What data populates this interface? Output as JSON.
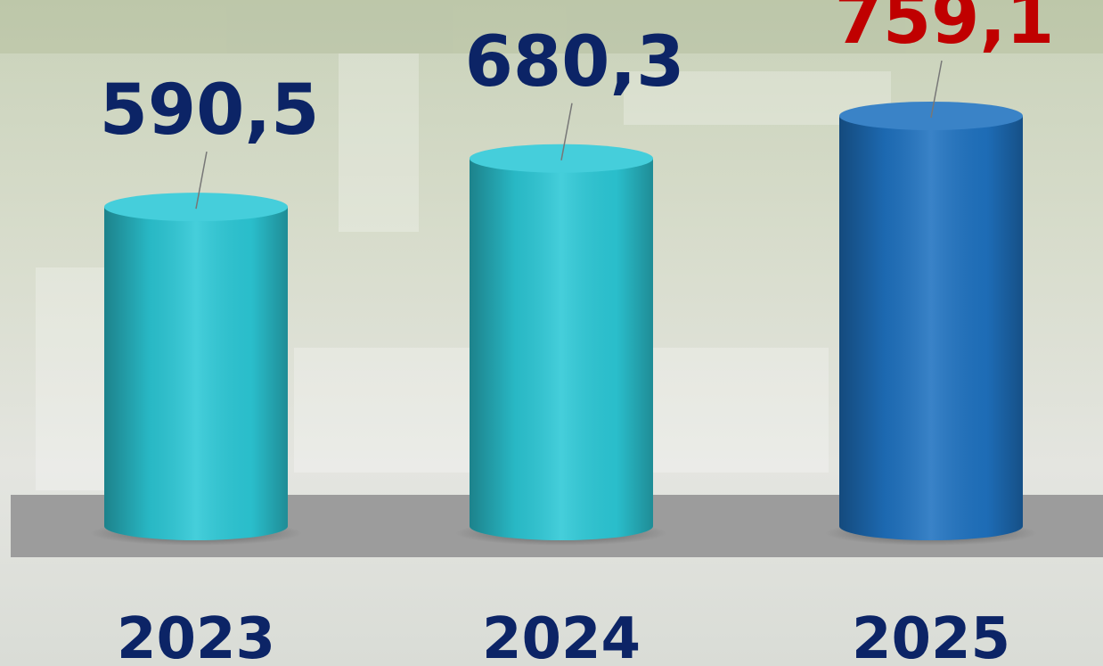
{
  "chart_data": {
    "type": "bar",
    "categories": [
      "2023",
      "2024",
      "2025"
    ],
    "values": [
      590.5,
      680.3,
      759.1
    ],
    "value_labels": [
      "590,5",
      "680,3",
      "759,1"
    ],
    "colors": [
      "#2cc8d6",
      "#2cc8d6",
      "#1f72c0"
    ],
    "label_colors": [
      "#0c2466",
      "#0c2466",
      "#c00000"
    ]
  }
}
